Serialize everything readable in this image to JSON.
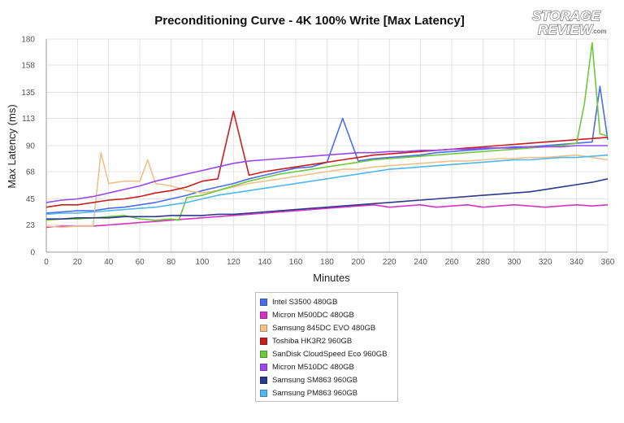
{
  "logo": {
    "line1": "STORAGE",
    "line2": "REVIEW",
    "suffix": ".com"
  },
  "chart_data": {
    "type": "line",
    "title": "Preconditioning Curve - 4K 100% Write [Max Latency]",
    "xlabel": "Minutes",
    "ylabel": "Max Latency (ms)",
    "xlim": [
      0,
      360
    ],
    "ylim": [
      0,
      180
    ],
    "x_ticks": [
      0,
      20,
      40,
      60,
      80,
      100,
      120,
      140,
      160,
      180,
      200,
      220,
      240,
      260,
      280,
      300,
      320,
      340,
      360
    ],
    "y_ticks": [
      0,
      23,
      45,
      68,
      90,
      113,
      135,
      158,
      180
    ],
    "grid": true,
    "legend_position": "below",
    "series": [
      {
        "name": "Intel S3500 480GB",
        "color": "#4c6cf0",
        "x": [
          0,
          10,
          20,
          30,
          40,
          50,
          60,
          70,
          80,
          90,
          100,
          110,
          120,
          130,
          140,
          150,
          160,
          170,
          180,
          190,
          200,
          210,
          220,
          230,
          240,
          250,
          260,
          270,
          280,
          290,
          300,
          310,
          320,
          330,
          340,
          350,
          355,
          360
        ],
        "y": [
          33,
          34,
          35,
          35,
          37,
          38,
          40,
          42,
          45,
          48,
          52,
          55,
          58,
          62,
          65,
          68,
          71,
          72,
          76,
          113,
          77,
          79,
          80,
          81,
          82,
          84,
          85,
          86,
          87,
          88,
          89,
          89,
          90,
          91,
          92,
          93,
          140,
          95
        ]
      },
      {
        "name": "Micron M500DC 480GB",
        "color": "#d633c5",
        "x": [
          0,
          10,
          20,
          30,
          40,
          50,
          60,
          70,
          80,
          90,
          100,
          110,
          120,
          130,
          140,
          150,
          160,
          170,
          180,
          190,
          200,
          210,
          220,
          230,
          240,
          250,
          260,
          270,
          280,
          290,
          300,
          310,
          320,
          330,
          340,
          350,
          360
        ],
        "y": [
          21,
          22,
          22,
          22,
          23,
          24,
          25,
          26,
          27,
          28,
          29,
          30,
          31,
          32,
          33,
          34,
          35,
          36,
          37,
          38,
          39,
          40,
          38,
          39,
          40,
          38,
          39,
          40,
          38,
          39,
          40,
          39,
          38,
          39,
          40,
          39,
          40
        ]
      },
      {
        "name": "Samsung 845DC EVO 480GB",
        "color": "#f2c08a",
        "x": [
          0,
          10,
          20,
          30,
          35,
          40,
          50,
          60,
          65,
          70,
          80,
          90,
          100,
          110,
          120,
          130,
          140,
          150,
          160,
          170,
          180,
          190,
          200,
          210,
          220,
          230,
          240,
          250,
          260,
          270,
          280,
          290,
          300,
          310,
          320,
          330,
          340,
          350,
          360
        ],
        "y": [
          22,
          21,
          22,
          22,
          84,
          58,
          60,
          60,
          78,
          58,
          56,
          52,
          50,
          52,
          55,
          58,
          60,
          62,
          64,
          66,
          68,
          70,
          70,
          72,
          73,
          74,
          75,
          76,
          77,
          77,
          78,
          79,
          79,
          80,
          80,
          81,
          82,
          80,
          78
        ]
      },
      {
        "name": "Toshiba HK3R2 960GB",
        "color": "#c81e1e",
        "x": [
          0,
          10,
          20,
          30,
          40,
          50,
          60,
          70,
          80,
          90,
          100,
          110,
          120,
          130,
          140,
          150,
          160,
          170,
          180,
          190,
          200,
          210,
          220,
          230,
          240,
          250,
          260,
          270,
          280,
          290,
          300,
          310,
          320,
          330,
          340,
          350,
          360
        ],
        "y": [
          38,
          40,
          40,
          42,
          44,
          45,
          47,
          50,
          52,
          55,
          60,
          62,
          119,
          65,
          68,
          70,
          72,
          74,
          76,
          78,
          80,
          82,
          83,
          84,
          85,
          86,
          87,
          88,
          89,
          90,
          91,
          92,
          93,
          94,
          95,
          96,
          97
        ]
      },
      {
        "name": "SanDisk CloudSpeed Eco 960GB",
        "color": "#6cc93a",
        "x": [
          0,
          10,
          20,
          30,
          40,
          50,
          60,
          70,
          80,
          85,
          90,
          100,
          110,
          120,
          130,
          140,
          150,
          160,
          170,
          180,
          190,
          200,
          210,
          220,
          230,
          240,
          250,
          260,
          270,
          280,
          290,
          300,
          310,
          320,
          330,
          340,
          345,
          350,
          355,
          360
        ],
        "y": [
          27,
          28,
          28,
          29,
          30,
          31,
          28,
          27,
          28,
          27,
          46,
          48,
          52,
          56,
          60,
          63,
          66,
          68,
          70,
          72,
          74,
          76,
          78,
          79,
          80,
          81,
          82,
          83,
          84,
          85,
          86,
          87,
          88,
          89,
          90,
          92,
          125,
          177,
          100,
          98
        ]
      },
      {
        "name": "Micron M510DC 480GB",
        "color": "#9a47ec",
        "x": [
          0,
          10,
          20,
          30,
          40,
          50,
          60,
          70,
          80,
          90,
          100,
          110,
          120,
          130,
          140,
          150,
          160,
          170,
          180,
          190,
          200,
          210,
          220,
          230,
          240,
          250,
          260,
          270,
          280,
          290,
          300,
          310,
          320,
          330,
          340,
          350,
          360
        ],
        "y": [
          42,
          44,
          45,
          47,
          50,
          53,
          56,
          60,
          63,
          66,
          69,
          72,
          75,
          77,
          78,
          79,
          80,
          81,
          82,
          83,
          84,
          84,
          85,
          85,
          86,
          86,
          87,
          87,
          88,
          88,
          88,
          89,
          89,
          89,
          90,
          90,
          90
        ]
      },
      {
        "name": "Samsung SM863 960GB",
        "color": "#2b3a8c",
        "x": [
          0,
          10,
          20,
          30,
          40,
          50,
          60,
          70,
          80,
          90,
          100,
          110,
          120,
          130,
          140,
          150,
          160,
          170,
          180,
          190,
          200,
          210,
          220,
          230,
          240,
          250,
          260,
          270,
          280,
          290,
          300,
          310,
          320,
          330,
          340,
          350,
          360
        ],
        "y": [
          28,
          28,
          29,
          29,
          29,
          30,
          30,
          30,
          31,
          31,
          31,
          32,
          32,
          33,
          34,
          35,
          36,
          37,
          38,
          39,
          40,
          41,
          42,
          43,
          44,
          45,
          46,
          47,
          48,
          49,
          50,
          51,
          53,
          55,
          57,
          59,
          62
        ]
      },
      {
        "name": "Samsung PM863 960GB",
        "color": "#4fb7ec",
        "x": [
          0,
          10,
          20,
          30,
          40,
          50,
          60,
          70,
          80,
          90,
          100,
          110,
          120,
          130,
          140,
          150,
          160,
          170,
          180,
          190,
          200,
          210,
          220,
          230,
          240,
          250,
          260,
          270,
          280,
          290,
          300,
          310,
          320,
          330,
          340,
          350,
          360
        ],
        "y": [
          32,
          33,
          33,
          34,
          35,
          36,
          37,
          38,
          40,
          42,
          45,
          48,
          50,
          52,
          54,
          56,
          58,
          60,
          62,
          64,
          66,
          68,
          70,
          71,
          72,
          73,
          74,
          75,
          76,
          77,
          78,
          78,
          79,
          80,
          80,
          81,
          82
        ]
      }
    ]
  }
}
